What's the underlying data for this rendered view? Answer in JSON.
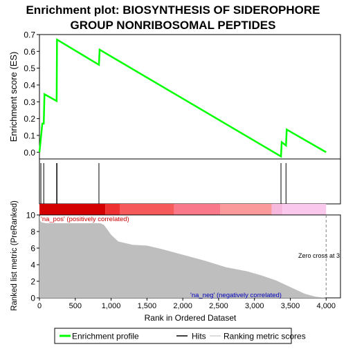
{
  "title_line1": "Enrichment plot: BIOSYNTHESIS OF SIDEROPHORE",
  "title_line2": "GROUP NONRIBOSOMAL PEPTIDES",
  "colors": {
    "es_line": "#00ff00",
    "hits": "#000000",
    "metric_fill": "#bebebe",
    "pos_label": "#cc0000",
    "neg_label": "#0000bb",
    "zero_cross": "#808080"
  },
  "chart_data": [
    {
      "type": "line",
      "name": "enrichment-score-panel",
      "ylabel": "Enrichment score (ES)",
      "xlim": [
        0,
        4200
      ],
      "ylim": [
        -0.04,
        0.7
      ],
      "yticks": [
        "0.0",
        "0.1",
        "0.2",
        "0.3",
        "0.4",
        "0.5",
        "0.6",
        "0.7"
      ],
      "ytick_values": [
        0.0,
        0.1,
        0.2,
        0.3,
        0.4,
        0.5,
        0.6,
        0.7
      ],
      "series": [
        {
          "name": "Enrichment profile",
          "x": [
            0,
            20,
            40,
            60,
            70,
            240,
            245,
            830,
            840,
            3370,
            3380,
            3440,
            3450,
            4000
          ],
          "y": [
            0.0,
            0.085,
            0.17,
            0.17,
            0.345,
            0.305,
            0.67,
            0.52,
            0.61,
            -0.025,
            0.06,
            0.04,
            0.135,
            0.0
          ]
        }
      ]
    },
    {
      "type": "hits",
      "name": "hits-panel",
      "hits_x": [
        20,
        60,
        240,
        245,
        830,
        3370,
        3440
      ]
    },
    {
      "type": "area",
      "name": "ranked-metric-panel",
      "xlabel": "Rank in Ordered Dataset",
      "ylabel": "Ranked list metric (PreRanked)",
      "xlim": [
        0,
        4200
      ],
      "ylim": [
        0,
        10
      ],
      "xticks": [
        "0",
        "500",
        "1,000",
        "1,500",
        "2,000",
        "2,500",
        "3,000",
        "3,500",
        "4,000"
      ],
      "xtick_values": [
        0,
        500,
        1000,
        1500,
        2000,
        2500,
        3000,
        3500,
        4000
      ],
      "yticks": [
        "0",
        "2",
        "4",
        "6",
        "8",
        "10"
      ],
      "ytick_values": [
        0,
        2,
        4,
        6,
        8,
        10
      ],
      "x": [
        0,
        10,
        30,
        100,
        500,
        850,
        900,
        1000,
        1100,
        1300,
        1500,
        1700,
        2000,
        2300,
        2600,
        2900,
        3100,
        3300,
        3500,
        3700,
        3850,
        3950,
        4000
      ],
      "y": [
        10.0,
        9.3,
        9.1,
        9.0,
        9.0,
        9.0,
        8.8,
        7.6,
        6.8,
        6.4,
        6.3,
        5.9,
        5.2,
        4.5,
        3.7,
        3.2,
        2.7,
        2.1,
        1.3,
        0.5,
        0.15,
        0.05,
        0.0
      ],
      "pos_label": "'na_pos' (positively correlated)",
      "neg_label": "'na_neg' (negatively correlated)",
      "zero_cross_label": "Zero cross at 3",
      "zero_cross_x": 4000,
      "heat_bands": [
        {
          "x0": 0,
          "x1": 920,
          "color": "#d40000"
        },
        {
          "x0": 920,
          "x1": 1120,
          "color": "#ee3030"
        },
        {
          "x0": 1120,
          "x1": 1880,
          "color": "#f75a5a"
        },
        {
          "x0": 1880,
          "x1": 2520,
          "color": "#f9788a"
        },
        {
          "x0": 2520,
          "x1": 3240,
          "color": "#fb9a9a"
        },
        {
          "x0": 3240,
          "x1": 3390,
          "color": "#f7b8de"
        },
        {
          "x0": 3390,
          "x1": 4000,
          "color": "#fac8ec"
        }
      ]
    }
  ],
  "legend": {
    "items": [
      {
        "label": "Enrichment profile",
        "color": "#00ff00",
        "kind": "line-thick"
      },
      {
        "label": "Hits",
        "color": "#000000",
        "kind": "line-thin"
      },
      {
        "label": "Ranking metric scores",
        "color": "#d0d0d0",
        "kind": "line-thin"
      }
    ]
  }
}
